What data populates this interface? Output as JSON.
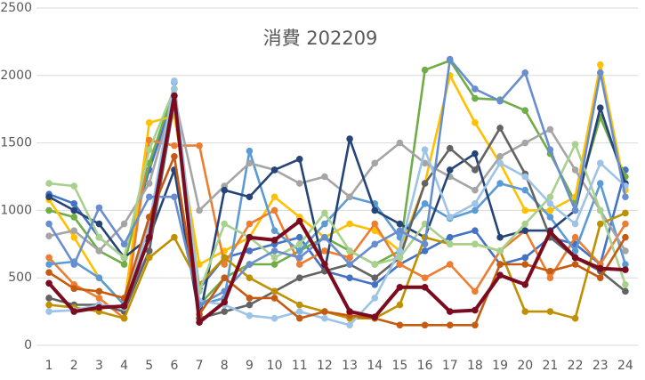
{
  "chart_data": {
    "type": "line",
    "title": "消費 202209",
    "categories": [
      1,
      2,
      3,
      4,
      5,
      6,
      7,
      8,
      9,
      10,
      11,
      12,
      13,
      14,
      15,
      16,
      17,
      18,
      19,
      20,
      21,
      22,
      23,
      24
    ],
    "ylim": [
      0,
      2500
    ],
    "yticks": [
      0,
      500,
      1000,
      1500,
      2000,
      2500
    ],
    "grid": true,
    "series": [
      {
        "color": "#4472c4",
        "values": [
          1120,
          1050,
          800,
          650,
          1300,
          1850,
          420,
          650,
          700,
          750,
          800,
          550,
          500,
          450,
          600,
          700,
          800,
          850,
          600,
          650,
          800,
          750,
          600,
          1300
        ]
      },
      {
        "color": "#70ad47",
        "values": [
          1000,
          950,
          700,
          600,
          1350,
          1900,
          300,
          500,
          600,
          600,
          700,
          800,
          700,
          600,
          700,
          2040,
          2110,
          1830,
          1820,
          1740,
          1420,
          1060,
          1690,
          1250
        ]
      },
      {
        "color": "#ffc000",
        "values": [
          1080,
          800,
          500,
          300,
          1650,
          1700,
          600,
          700,
          800,
          1100,
          950,
          800,
          900,
          850,
          700,
          1200,
          2000,
          1650,
          1350,
          1000,
          1000,
          1100,
          2080,
          1150
        ]
      },
      {
        "color": "#ed7d31",
        "values": [
          650,
          450,
          350,
          200,
          1520,
          1480,
          1480,
          600,
          900,
          1000,
          600,
          700,
          650,
          900,
          600,
          500,
          600,
          400,
          700,
          850,
          500,
          800,
          600,
          900
        ]
      },
      {
        "color": "#5b9bd5",
        "values": [
          600,
          620,
          500,
          300,
          700,
          1950,
          300,
          350,
          1440,
          850,
          700,
          900,
          1100,
          1050,
          800,
          1050,
          940,
          1000,
          1200,
          1150,
          950,
          700,
          1200,
          600
        ]
      },
      {
        "color": "#a5a5a5",
        "values": [
          810,
          850,
          700,
          900,
          1200,
          1850,
          1000,
          1180,
          1350,
          1300,
          1200,
          1250,
          1100,
          1350,
          1500,
          1350,
          1250,
          1150,
          1400,
          1500,
          1600,
          1300,
          1000,
          700
        ]
      },
      {
        "color": "#264478",
        "values": [
          1100,
          1000,
          900,
          650,
          800,
          1300,
          200,
          1150,
          1100,
          1300,
          1380,
          550,
          1530,
          1000,
          900,
          800,
          1300,
          1420,
          800,
          850,
          850,
          1000,
          1760,
          1200
        ]
      },
      {
        "color": "#636363",
        "values": [
          350,
          300,
          300,
          250,
          700,
          1800,
          200,
          250,
          300,
          400,
          500,
          550,
          600,
          500,
          650,
          1200,
          1460,
          1300,
          1610,
          1270,
          800,
          650,
          550,
          400
        ]
      },
      {
        "color": "#bf9000",
        "values": [
          300,
          280,
          250,
          200,
          650,
          800,
          450,
          650,
          500,
          400,
          300,
          250,
          200,
          200,
          300,
          800,
          750,
          750,
          700,
          250,
          250,
          200,
          900,
          980
        ]
      },
      {
        "color": "#a9d18e",
        "values": [
          1200,
          1180,
          800,
          650,
          1450,
          1900,
          400,
          900,
          800,
          650,
          750,
          980,
          700,
          600,
          650,
          900,
          750,
          750,
          700,
          900,
          1100,
          1490,
          1000,
          450
        ]
      },
      {
        "color": "#9dc3e6",
        "values": [
          250,
          260,
          300,
          280,
          900,
          1960,
          330,
          300,
          220,
          200,
          250,
          200,
          150,
          350,
          700,
          1450,
          950,
          1050,
          1350,
          1250,
          1050,
          900,
          1350,
          1180
        ]
      },
      {
        "color": "#698ed0",
        "values": [
          900,
          600,
          1020,
          750,
          1100,
          1100,
          300,
          400,
          600,
          700,
          650,
          800,
          600,
          750,
          850,
          750,
          2120,
          1900,
          1810,
          2020,
          1450,
          1000,
          2020,
          1100
        ]
      },
      {
        "color": "#c55a11",
        "values": [
          540,
          420,
          400,
          350,
          950,
          1400,
          230,
          500,
          350,
          350,
          200,
          250,
          220,
          200,
          150,
          150,
          150,
          150,
          600,
          600,
          550,
          600,
          500,
          800
        ]
      },
      {
        "color": "#7b0c1f",
        "values": [
          460,
          250,
          280,
          290,
          800,
          1850,
          170,
          320,
          800,
          780,
          920,
          600,
          250,
          210,
          430,
          430,
          250,
          260,
          520,
          450,
          840,
          650,
          570,
          560
        ]
      }
    ]
  }
}
